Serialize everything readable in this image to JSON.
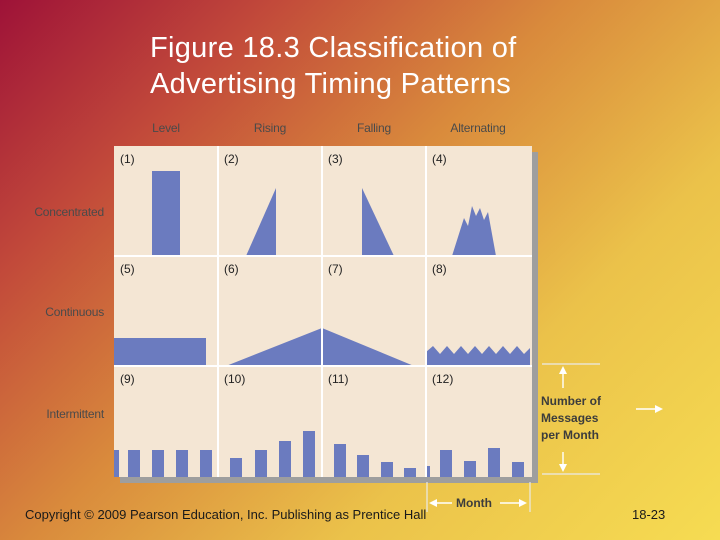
{
  "slide": {
    "title_line1": "Figure 18.3 Classification of",
    "title_line2": "Advertising Timing Patterns",
    "copyright": "Copyright © 2009 Pearson Education, Inc.  Publishing as Prentice Hall",
    "page_number": "18-23"
  },
  "diagram": {
    "columns": [
      "Level",
      "Rising",
      "Falling",
      "Alternating"
    ],
    "rows": [
      "Concentrated",
      "Continuous",
      "Intermittent"
    ],
    "cells": [
      "(1)",
      "(2)",
      "(3)",
      "(4)",
      "(5)",
      "(6)",
      "(7)",
      "(8)",
      "(9)",
      "(10)",
      "(11)",
      "(12)"
    ],
    "y_axis_label": [
      "Number of",
      "Messages",
      "per Month"
    ],
    "x_axis_label": "Month",
    "colors": {
      "bar": "#6b7bbf",
      "cell_bg": "#f4e6d4",
      "grid_line": "#ffffff"
    }
  }
}
